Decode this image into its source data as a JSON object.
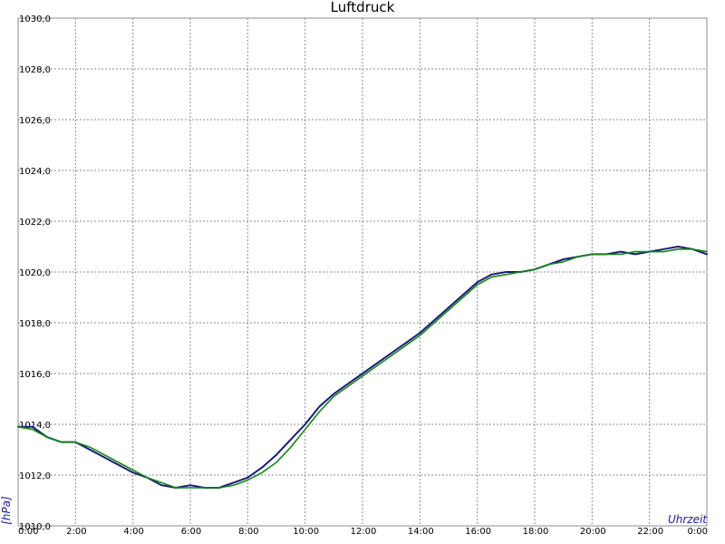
{
  "chart_data": {
    "type": "line",
    "title": "Luftdruck",
    "ylabel": "[hPa]",
    "xlabel": "Uhrzeit",
    "ylim": [
      1010,
      1030
    ],
    "xlim": [
      0,
      24
    ],
    "grid": true,
    "y_ticks": [
      "1010,0",
      "1012,0",
      "1014,0",
      "1016,0",
      "1018,0",
      "1020,0",
      "1022,0",
      "1024,0",
      "1026,0",
      "1028,0",
      "1030,0"
    ],
    "x_ticks": [
      "0:00",
      "2:00",
      "4:00",
      "6:00",
      "8:00",
      "10:00",
      "12:00",
      "14:00",
      "16:00",
      "18:00",
      "20:00",
      "22:00",
      "0:00"
    ],
    "colors": {
      "measured": "#1a1a80",
      "smoothed": "#118811"
    },
    "series": [
      {
        "x": [
          0,
          0.5,
          1,
          1.5,
          2,
          2.5,
          3,
          3.5,
          4,
          4.5,
          5,
          5.5,
          6,
          6.5,
          7,
          7.5,
          8,
          8.5,
          9,
          9.5,
          10,
          10.5,
          11,
          11.5,
          12,
          12.5,
          13,
          13.5,
          14,
          14.5,
          15,
          15.5,
          16,
          16.5,
          17,
          17.5,
          18,
          18.5,
          19,
          19.5,
          20,
          20.5,
          21,
          21.5,
          22,
          22.5,
          23,
          23.5,
          24
        ],
        "values": [
          1013.9,
          1013.9,
          1013.5,
          1013.3,
          1013.3,
          1013.0,
          1012.7,
          1012.4,
          1012.1,
          1011.9,
          1011.6,
          1011.5,
          1011.6,
          1011.5,
          1011.5,
          1011.7,
          1011.9,
          1012.3,
          1012.8,
          1013.4,
          1014.0,
          1014.7,
          1015.2,
          1015.6,
          1016.0,
          1016.4,
          1016.8,
          1017.2,
          1017.6,
          1018.1,
          1018.6,
          1019.1,
          1019.6,
          1019.9,
          1020.0,
          1020.0,
          1020.1,
          1020.3,
          1020.5,
          1020.6,
          1020.7,
          1020.7,
          1020.8,
          1020.7,
          1020.8,
          1020.9,
          1021.0,
          1020.9,
          1020.7
        ]
      },
      {
        "x": [
          0,
          0.5,
          1,
          1.5,
          2,
          2.5,
          3,
          3.5,
          4,
          4.5,
          5,
          5.5,
          6,
          6.5,
          7,
          7.5,
          8,
          8.5,
          9,
          9.5,
          10,
          10.5,
          11,
          11.5,
          12,
          12.5,
          13,
          13.5,
          14,
          14.5,
          15,
          15.5,
          16,
          16.5,
          17,
          17.5,
          18,
          18.5,
          19,
          19.5,
          20,
          20.5,
          21,
          21.5,
          22,
          22.5,
          23,
          23.5,
          24
        ],
        "values": [
          1013.9,
          1013.8,
          1013.5,
          1013.3,
          1013.3,
          1013.1,
          1012.8,
          1012.5,
          1012.2,
          1011.9,
          1011.7,
          1011.5,
          1011.5,
          1011.5,
          1011.5,
          1011.6,
          1011.8,
          1012.1,
          1012.5,
          1013.1,
          1013.8,
          1014.5,
          1015.1,
          1015.5,
          1015.9,
          1016.3,
          1016.7,
          1017.1,
          1017.5,
          1018.0,
          1018.5,
          1019.0,
          1019.5,
          1019.8,
          1019.9,
          1020.0,
          1020.1,
          1020.3,
          1020.4,
          1020.6,
          1020.7,
          1020.7,
          1020.7,
          1020.8,
          1020.8,
          1020.8,
          1020.9,
          1020.9,
          1020.8
        ]
      }
    ]
  }
}
